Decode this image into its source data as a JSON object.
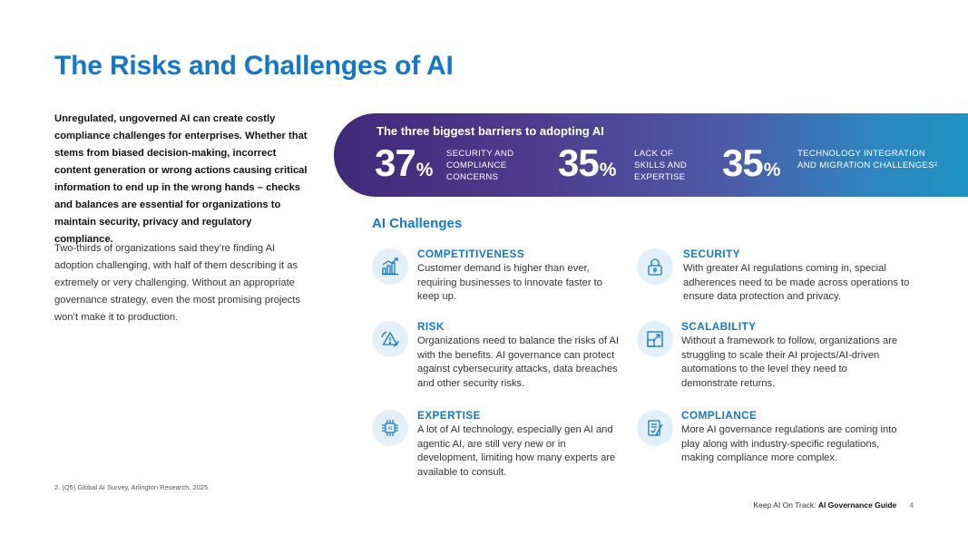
{
  "title": "The Risks and Challenges of AI",
  "intro": {
    "bold": "Unregulated, ungoverned AI can create costly compliance challenges for enterprises. Whether that stems from biased decision-making, incorrect content generation or wrong actions causing critical information to end up in the wrong hands – checks and balances are essential for organizations to maintain security, privacy and regulatory compliance.",
    "body": "Two-thirds of organizations said they’re finding AI adoption challenging, with half of them describing it as extremely or very challenging.  Without an appropriate governance strategy, even the most promising projects won’t make it to production."
  },
  "barriers": {
    "title": "The three biggest barriers to adopting AI",
    "stats": [
      {
        "value": "37",
        "unit": "%",
        "label": "SECURITY AND COMPLIANCE CONCERNS"
      },
      {
        "value": "35",
        "unit": "%",
        "label": "LACK OF SKILLS AND EXPERTISE"
      },
      {
        "value": "35",
        "unit": "%",
        "label": "TECHNOLOGY INTEGRATION AND MIGRATION CHALLENGES²"
      }
    ]
  },
  "challenges": {
    "title": "AI Challenges",
    "items": [
      {
        "icon": "bar-chart-icon",
        "title": "COMPETITIVENESS",
        "text": "Customer demand is higher than ever, requiring businesses to innovate faster to keep up."
      },
      {
        "icon": "lock-icon",
        "title": "SECURITY",
        "text": "With greater AI regulations coming in, special adherences need to be made across operations to ensure data protection and privacy."
      },
      {
        "icon": "warning-icon",
        "title": "RISK",
        "text": "Organizations need to balance the risks of AI with the benefits. AI governance can protect against cybersecurity attacks, data breaches and other security risks."
      },
      {
        "icon": "scale-arrow-icon",
        "title": "SCALABILITY",
        "text": "Without a framework to follow, organizations are struggling to scale their AI projects/AI-driven automations to the level they need to demonstrate returns."
      },
      {
        "icon": "ai-chip-icon",
        "title": "EXPERTISE",
        "text": "A lot of AI technology, especially gen AI and agentic AI, are still very new or in development, limiting how many experts are available to consult."
      },
      {
        "icon": "compliance-document-icon",
        "title": "COMPLIANCE",
        "text": "More AI governance regulations are coming into play along with industry-specific regulations, making compliance more complex."
      }
    ]
  },
  "footnote": "2. (Q5) Global AI Survey, Arlington Research, 2025",
  "footer": {
    "prefix": "Keep AI On Track: ",
    "guide": "AI Governance Guide",
    "page": "4"
  },
  "colors": {
    "accent": "#1477c9",
    "banner_start": "#3f2a78",
    "banner_end": "#1e92c0",
    "icon_bg": "#e3f0fa"
  }
}
